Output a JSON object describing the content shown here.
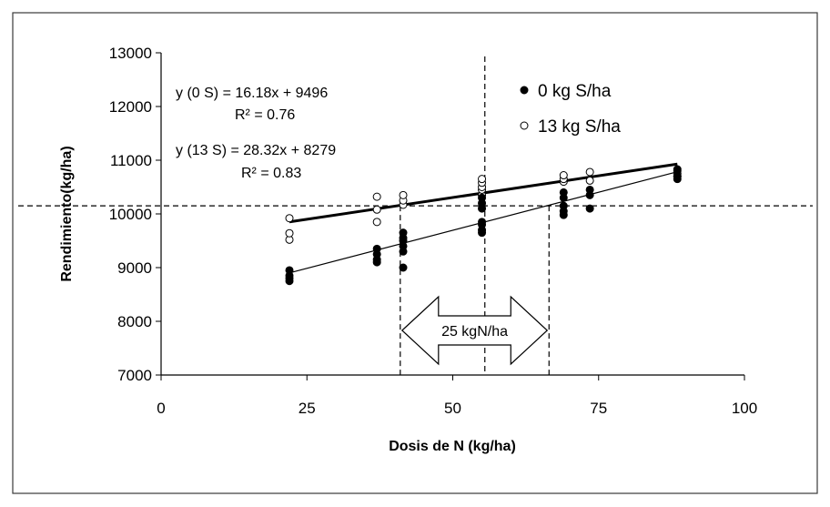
{
  "chart_data": {
    "type": "scatter",
    "xlabel": "Dosis de N (kg/ha)",
    "ylabel": "Rendimiento(kg/ha)",
    "xlim": [
      0,
      100
    ],
    "ylim": [
      7000,
      13000
    ],
    "x_ticks": [
      "0",
      "25",
      "50",
      "75",
      "100"
    ],
    "y_ticks": [
      "7000",
      "8000",
      "9000",
      "10000",
      "11000",
      "12000",
      "13000"
    ],
    "legend_position": "top-right",
    "grid": false,
    "series": [
      {
        "name": "0 kg S/ha",
        "marker": "filled-circle",
        "points": [
          [
            22,
            8750
          ],
          [
            22,
            8800
          ],
          [
            22,
            8850
          ],
          [
            22,
            8950
          ],
          [
            37,
            9100
          ],
          [
            37,
            9150
          ],
          [
            37,
            9250
          ],
          [
            37,
            9350
          ],
          [
            41.5,
            9000
          ],
          [
            41.5,
            9300
          ],
          [
            41.5,
            9400
          ],
          [
            41.5,
            9500
          ],
          [
            41.5,
            9550
          ],
          [
            41.5,
            9650
          ],
          [
            55,
            9650
          ],
          [
            55,
            9700
          ],
          [
            55,
            9800
          ],
          [
            55,
            9850
          ],
          [
            55,
            10100
          ],
          [
            55,
            10200
          ],
          [
            55,
            10300
          ],
          [
            69,
            9980
          ],
          [
            69,
            10050
          ],
          [
            69,
            10150
          ],
          [
            69,
            10300
          ],
          [
            69,
            10400
          ],
          [
            73.5,
            10100
          ],
          [
            73.5,
            10350
          ],
          [
            73.5,
            10450
          ],
          [
            88.5,
            10650
          ],
          [
            88.5,
            10700
          ],
          [
            88.5,
            10800
          ],
          [
            88.5,
            10830
          ]
        ],
        "trend": {
          "slope": 16.18,
          "intercept": 9496,
          "x_range": [
            22,
            88.5
          ]
        }
      },
      {
        "name": "13 kg S/ha",
        "marker": "open-circle",
        "points": [
          [
            22,
            9520
          ],
          [
            22,
            9640
          ],
          [
            22,
            9920
          ],
          [
            37,
            9850
          ],
          [
            37,
            10080
          ],
          [
            37,
            10320
          ],
          [
            41.5,
            10170
          ],
          [
            41.5,
            10250
          ],
          [
            41.5,
            10350
          ],
          [
            55,
            10350
          ],
          [
            55,
            10450
          ],
          [
            55,
            10500
          ],
          [
            55,
            10580
          ],
          [
            55,
            10650
          ],
          [
            69,
            10600
          ],
          [
            69,
            10650
          ],
          [
            69,
            10720
          ],
          [
            73.5,
            10620
          ],
          [
            73.5,
            10780
          ],
          [
            88.5,
            10700
          ],
          [
            88.5,
            10750
          ]
        ],
        "trend": {
          "slope": 28.32,
          "intercept": 8279,
          "x_range": [
            22,
            88.5
          ]
        }
      }
    ],
    "reference_lines": {
      "horizontal_y": 10150,
      "vertical_x": [
        41,
        55.5,
        66.5
      ]
    },
    "annotations": {
      "eq_0": "y (0 S) = 16.18x + 9496",
      "r2_0": "R² = 0.76",
      "eq_13": "y (13 S) = 28.32x + 8279",
      "r2_13": "R² = 0.83",
      "arrow_label": "25 kgN/ha",
      "arrow_x": [
        41,
        66.5
      ]
    }
  }
}
